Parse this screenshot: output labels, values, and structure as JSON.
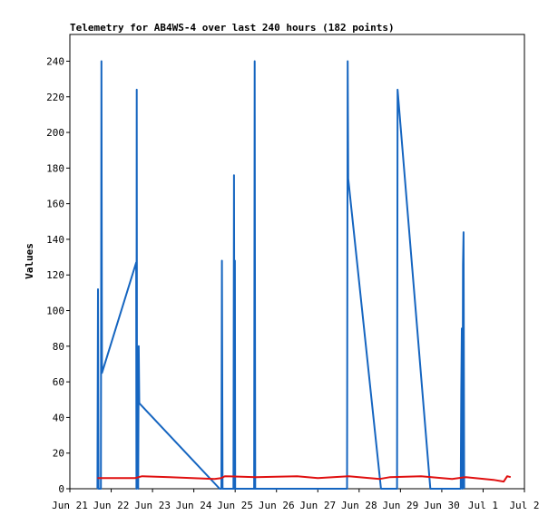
{
  "chart_data": {
    "type": "line",
    "title": "Telemetry for AB4WS-4 over last 240 hours (182 points)",
    "ylabel": "Values",
    "xlabel": "",
    "ylim": [
      0,
      255
    ],
    "xlim": [
      "Jun 21 00:00",
      "Jul 2 00:00"
    ],
    "xticks": [
      "Jun 21",
      "Jun 22",
      "Jun 23",
      "Jun 24",
      "Jun 25",
      "Jun 26",
      "Jun 27",
      "Jun 28",
      "Jun 29",
      "Jun 30",
      "Jul 1",
      "Jul 2"
    ],
    "yticks": [
      0,
      20,
      40,
      60,
      80,
      100,
      120,
      140,
      160,
      180,
      200,
      220,
      240
    ],
    "grid": false,
    "series": [
      {
        "color": "#1565c0",
        "points": [
          [
            "Jun 21 16:00",
            0
          ],
          [
            "Jun 21 16:20",
            112
          ],
          [
            "Jun 21 16:40",
            0
          ],
          [
            "Jun 21 18:00",
            0
          ],
          [
            "Jun 21 18:20",
            240
          ],
          [
            "Jun 21 18:40",
            65
          ],
          [
            "Jun 22 14:30",
            127
          ],
          [
            "Jun 22 14:40",
            0
          ],
          [
            "Jun 22 14:50",
            224
          ],
          [
            "Jun 22 15:00",
            15
          ],
          [
            "Jun 22 15:20",
            67
          ],
          [
            "Jun 22 15:40",
            0
          ],
          [
            "Jun 22 16:00",
            80
          ],
          [
            "Jun 22 16:20",
            48
          ],
          [
            "Jun 24 15:00",
            0
          ],
          [
            "Jun 24 16:00",
            0
          ],
          [
            "Jun 24 16:20",
            128
          ],
          [
            "Jun 24 16:40",
            0
          ],
          [
            "Jun 24 23:00",
            0
          ],
          [
            "Jun 24 23:20",
            176
          ],
          [
            "Jun 24 23:40",
            0
          ],
          [
            "Jun 24 23:50",
            128
          ],
          [
            "Jun 25 00:00",
            0
          ],
          [
            "Jun 25 11:00",
            0
          ],
          [
            "Jun 25 11:20",
            240
          ],
          [
            "Jun 25 11:40",
            0
          ],
          [
            "Jun 27 17:00",
            0
          ],
          [
            "Jun 27 17:20",
            240
          ],
          [
            "Jun 27 17:40",
            174
          ],
          [
            "Jun 28 12:40",
            0
          ],
          [
            "Jun 28 22:00",
            0
          ],
          [
            "Jun 28 22:20",
            224
          ],
          [
            "Jun 29 17:20",
            0
          ],
          [
            "Jun 30 11:00",
            0
          ],
          [
            "Jun 30 11:20",
            55
          ],
          [
            "Jun 30 11:40",
            90
          ],
          [
            "Jun 30 12:00",
            0
          ],
          [
            "Jun 30 12:20",
            126
          ],
          [
            "Jun 30 12:40",
            144
          ],
          [
            "Jun 30 13:00",
            0
          ]
        ]
      },
      {
        "color": "#e01010",
        "points": [
          [
            "Jun 21 16:00",
            6
          ],
          [
            "Jun 22 14:00",
            6
          ],
          [
            "Jun 22 18:00",
            7
          ],
          [
            "Jun 23 10:00",
            6.5
          ],
          [
            "Jun 24 12:00",
            5.5
          ],
          [
            "Jun 24 16:00",
            6
          ],
          [
            "Jun 24 18:00",
            7
          ],
          [
            "Jun 25 12:00",
            6.5
          ],
          [
            "Jun 26 12:00",
            7
          ],
          [
            "Jun 27 00:00",
            6
          ],
          [
            "Jun 27 18:00",
            7
          ],
          [
            "Jun 28 12:00",
            5.5
          ],
          [
            "Jun 28 18:00",
            6.5
          ],
          [
            "Jun 29 12:00",
            7
          ],
          [
            "Jun 30 06:00",
            5.5
          ],
          [
            "Jun 30 14:00",
            6.5
          ],
          [
            "Jul 1 06:00",
            5
          ],
          [
            "Jul 1 12:00",
            4
          ],
          [
            "Jul 1 14:00",
            7
          ],
          [
            "Jul 1 16:00",
            6.5
          ]
        ]
      }
    ]
  }
}
